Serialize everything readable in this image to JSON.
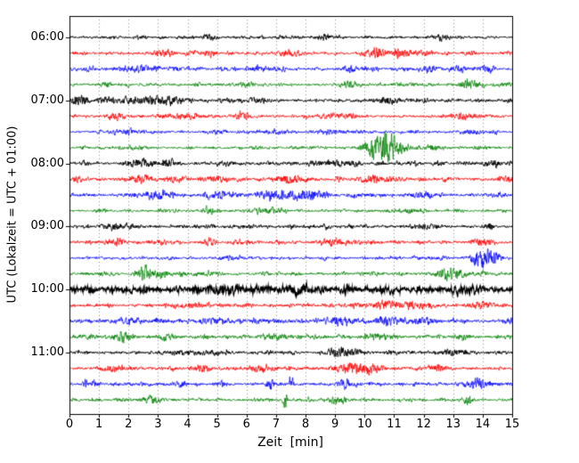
{
  "chart_data": {
    "type": "line",
    "subtype": "seismogram-drum-plot",
    "title": "",
    "xlabel": "Zeit  [min]",
    "ylabel": "UTC (Lokalzeit = UTC + 01:00)",
    "xlim": [
      0,
      15
    ],
    "x_ticks": [
      0,
      1,
      2,
      3,
      4,
      5,
      6,
      7,
      8,
      9,
      10,
      11,
      12,
      13,
      14,
      15
    ],
    "y_tick_labels": [
      "06:00",
      "07:00",
      "08:00",
      "09:00",
      "10:00",
      "11:00"
    ],
    "grid": "vertical-dotted",
    "legend": "none",
    "minutes_per_trace": 15,
    "n_traces": 24,
    "color_cycle": [
      "#000000",
      "#ff0000",
      "#0000ff",
      "#008000"
    ],
    "traces": [
      {
        "time": "06:00",
        "color": "#000000",
        "base_amp": 1.0,
        "lw": 0.9,
        "events": [
          {
            "x": 4.7,
            "amp": 2.5,
            "w": 0.15
          },
          {
            "x": 8.6,
            "amp": 2.0,
            "w": 0.2
          },
          {
            "x": 12.6,
            "amp": 1.5,
            "w": 0.3
          }
        ]
      },
      {
        "time": "06:15",
        "color": "#ff0000",
        "base_amp": 1.1,
        "lw": 0.75,
        "events": [
          {
            "x": 3.2,
            "amp": 2.0,
            "w": 0.3
          },
          {
            "x": 4.8,
            "amp": 3.0,
            "w": 0.12
          },
          {
            "x": 7.5,
            "amp": 2.0,
            "w": 0.3
          },
          {
            "x": 10.4,
            "amp": 3.0,
            "w": 0.25
          },
          {
            "x": 11.2,
            "amp": 2.5,
            "w": 0.2
          }
        ]
      },
      {
        "time": "06:30",
        "color": "#0000ff",
        "base_amp": 1.2,
        "lw": 0.75,
        "events": [
          {
            "x": 2.3,
            "amp": 2.5,
            "w": 0.3
          },
          {
            "x": 6.5,
            "amp": 1.5,
            "w": 0.3
          },
          {
            "x": 12.2,
            "amp": 2.0,
            "w": 0.25
          },
          {
            "x": 13.2,
            "amp": 2.0,
            "w": 0.2
          }
        ]
      },
      {
        "time": "06:45",
        "color": "#008000",
        "base_amp": 1.1,
        "lw": 0.75,
        "events": [
          {
            "x": 1.2,
            "amp": 2.0,
            "w": 0.15
          },
          {
            "x": 6.0,
            "amp": 1.5,
            "w": 0.3
          },
          {
            "x": 9.5,
            "amp": 1.5,
            "w": 0.3
          },
          {
            "x": 13.5,
            "amp": 2.0,
            "w": 0.2
          }
        ]
      },
      {
        "time": "07:00",
        "color": "#000000",
        "base_amp": 1.3,
        "lw": 0.9,
        "events": [
          {
            "x": 0.3,
            "amp": 3.0,
            "w": 0.2
          },
          {
            "x": 2.2,
            "amp": 2.5,
            "w": 0.4
          },
          {
            "x": 3.3,
            "amp": 3.0,
            "w": 0.4
          },
          {
            "x": 6.3,
            "amp": 2.0,
            "w": 0.3
          },
          {
            "x": 10.8,
            "amp": 2.5,
            "w": 0.3
          }
        ]
      },
      {
        "time": "07:15",
        "color": "#ff0000",
        "base_amp": 1.2,
        "lw": 0.75,
        "events": [
          {
            "x": 1.5,
            "amp": 2.5,
            "w": 0.2
          },
          {
            "x": 4.0,
            "amp": 2.0,
            "w": 0.4
          },
          {
            "x": 5.8,
            "amp": 2.5,
            "w": 0.2
          },
          {
            "x": 9.0,
            "amp": 1.5,
            "w": 0.4
          },
          {
            "x": 13.5,
            "amp": 2.0,
            "w": 0.3
          }
        ]
      },
      {
        "time": "07:30",
        "color": "#0000ff",
        "base_amp": 1.0,
        "lw": 0.75,
        "events": [
          {
            "x": 2.0,
            "amp": 1.5,
            "w": 0.4
          },
          {
            "x": 8.8,
            "amp": 1.5,
            "w": 0.3
          },
          {
            "x": 13.6,
            "amp": 2.5,
            "w": 0.25
          }
        ]
      },
      {
        "time": "07:45",
        "color": "#008000",
        "base_amp": 1.0,
        "lw": 0.75,
        "events": [
          {
            "x": 10.3,
            "amp": 7.0,
            "w": 0.25
          },
          {
            "x": 10.75,
            "amp": 10.0,
            "w": 0.2
          },
          {
            "x": 11.1,
            "amp": 5.0,
            "w": 0.3
          },
          {
            "x": 12.3,
            "amp": 2.0,
            "w": 0.2
          }
        ]
      },
      {
        "time": "08:00",
        "color": "#000000",
        "base_amp": 1.2,
        "lw": 0.9,
        "events": [
          {
            "x": 2.4,
            "amp": 2.5,
            "w": 0.3
          },
          {
            "x": 3.3,
            "amp": 2.5,
            "w": 0.2
          },
          {
            "x": 9.0,
            "amp": 2.0,
            "w": 0.5
          },
          {
            "x": 14.4,
            "amp": 2.5,
            "w": 0.15
          }
        ]
      },
      {
        "time": "08:15",
        "color": "#ff0000",
        "base_amp": 1.3,
        "lw": 0.75,
        "events": [
          {
            "x": 0.3,
            "amp": 2.5,
            "w": 0.15
          },
          {
            "x": 2.5,
            "amp": 2.0,
            "w": 0.3
          },
          {
            "x": 5.0,
            "amp": 2.0,
            "w": 0.3
          },
          {
            "x": 7.5,
            "amp": 2.0,
            "w": 0.4
          },
          {
            "x": 10.5,
            "amp": 2.0,
            "w": 0.4
          },
          {
            "x": 14.9,
            "amp": 2.5,
            "w": 0.2
          }
        ]
      },
      {
        "time": "08:30",
        "color": "#0000ff",
        "base_amp": 1.3,
        "lw": 0.75,
        "events": [
          {
            "x": 3.0,
            "amp": 2.5,
            "w": 0.4
          },
          {
            "x": 5.2,
            "amp": 2.0,
            "w": 0.25
          },
          {
            "x": 6.8,
            "amp": 3.5,
            "w": 0.3
          },
          {
            "x": 7.6,
            "amp": 3.0,
            "w": 0.3
          },
          {
            "x": 8.3,
            "amp": 2.5,
            "w": 0.3
          },
          {
            "x": 12.0,
            "amp": 2.0,
            "w": 0.3
          }
        ]
      },
      {
        "time": "08:45",
        "color": "#008000",
        "base_amp": 1.0,
        "lw": 0.75,
        "events": [
          {
            "x": 4.7,
            "amp": 3.5,
            "w": 0.12
          },
          {
            "x": 6.5,
            "amp": 1.5,
            "w": 0.4
          },
          {
            "x": 11.5,
            "amp": 1.5,
            "w": 0.3
          }
        ]
      },
      {
        "time": "09:00",
        "color": "#000000",
        "base_amp": 1.1,
        "lw": 0.9,
        "events": [
          {
            "x": 1.5,
            "amp": 2.5,
            "w": 0.2
          },
          {
            "x": 2.1,
            "amp": 2.0,
            "w": 0.2
          },
          {
            "x": 12.0,
            "amp": 1.5,
            "w": 0.4
          },
          {
            "x": 14.2,
            "amp": 3.0,
            "w": 0.12
          }
        ]
      },
      {
        "time": "09:15",
        "color": "#ff0000",
        "base_amp": 1.2,
        "lw": 0.75,
        "events": [
          {
            "x": 1.5,
            "amp": 2.0,
            "w": 0.3
          },
          {
            "x": 4.8,
            "amp": 3.5,
            "w": 0.15
          },
          {
            "x": 9.0,
            "amp": 1.5,
            "w": 0.5
          },
          {
            "x": 13.9,
            "amp": 2.5,
            "w": 0.2
          }
        ]
      },
      {
        "time": "09:30",
        "color": "#0000ff",
        "base_amp": 1.0,
        "lw": 0.75,
        "events": [
          {
            "x": 5.5,
            "amp": 1.5,
            "w": 0.3
          },
          {
            "x": 13.9,
            "amp": 7.5,
            "w": 0.22
          },
          {
            "x": 14.3,
            "amp": 4.0,
            "w": 0.2
          }
        ]
      },
      {
        "time": "09:45",
        "color": "#008000",
        "base_amp": 1.1,
        "lw": 0.75,
        "events": [
          {
            "x": 2.55,
            "amp": 7.0,
            "w": 0.15
          },
          {
            "x": 3.1,
            "amp": 3.0,
            "w": 0.2
          },
          {
            "x": 12.7,
            "amp": 4.0,
            "w": 0.25
          },
          {
            "x": 13.1,
            "amp": 2.5,
            "w": 0.2
          }
        ]
      },
      {
        "time": "10:00",
        "color": "#000000",
        "base_amp": 2.0,
        "lw": 1.1,
        "events": [
          {
            "x": 5.3,
            "amp": 2.0,
            "w": 0.4
          },
          {
            "x": 7.7,
            "amp": 3.0,
            "w": 0.3
          },
          {
            "x": 13.5,
            "amp": 2.5,
            "w": 0.3
          }
        ]
      },
      {
        "time": "10:15",
        "color": "#ff0000",
        "base_amp": 1.3,
        "lw": 0.75,
        "events": [
          {
            "x": 10.7,
            "amp": 3.5,
            "w": 0.3
          },
          {
            "x": 11.5,
            "amp": 2.5,
            "w": 0.25
          },
          {
            "x": 12.1,
            "amp": 2.0,
            "w": 0.2
          },
          {
            "x": 14.0,
            "amp": 2.0,
            "w": 0.3
          }
        ]
      },
      {
        "time": "10:30",
        "color": "#0000ff",
        "base_amp": 1.5,
        "lw": 0.75,
        "events": [
          {
            "x": 2.0,
            "amp": 2.0,
            "w": 0.3
          },
          {
            "x": 5.0,
            "amp": 2.0,
            "w": 0.3
          },
          {
            "x": 9.3,
            "amp": 2.5,
            "w": 0.3
          },
          {
            "x": 10.7,
            "amp": 3.0,
            "w": 0.25
          },
          {
            "x": 12.0,
            "amp": 2.5,
            "w": 0.3
          }
        ]
      },
      {
        "time": "10:45",
        "color": "#008000",
        "base_amp": 1.3,
        "lw": 0.75,
        "events": [
          {
            "x": 1.8,
            "amp": 2.5,
            "w": 0.25
          },
          {
            "x": 3.3,
            "amp": 2.5,
            "w": 0.2
          },
          {
            "x": 7.0,
            "amp": 2.0,
            "w": 0.3
          },
          {
            "x": 10.5,
            "amp": 2.0,
            "w": 0.4
          },
          {
            "x": 13.3,
            "amp": 2.0,
            "w": 0.2
          }
        ]
      },
      {
        "time": "11:00",
        "color": "#000000",
        "base_amp": 1.2,
        "lw": 0.9,
        "events": [
          {
            "x": 4.0,
            "amp": 1.5,
            "w": 0.4
          },
          {
            "x": 9.0,
            "amp": 4.0,
            "w": 0.2
          },
          {
            "x": 9.5,
            "amp": 2.5,
            "w": 0.3
          },
          {
            "x": 13.0,
            "amp": 2.0,
            "w": 0.25
          }
        ]
      },
      {
        "time": "11:15",
        "color": "#ff0000",
        "base_amp": 1.3,
        "lw": 0.75,
        "events": [
          {
            "x": 1.5,
            "amp": 2.5,
            "w": 0.2
          },
          {
            "x": 4.5,
            "amp": 3.0,
            "w": 0.2
          },
          {
            "x": 6.5,
            "amp": 2.5,
            "w": 0.3
          },
          {
            "x": 9.5,
            "amp": 3.0,
            "w": 0.4
          },
          {
            "x": 10.3,
            "amp": 2.5,
            "w": 0.3
          },
          {
            "x": 12.5,
            "amp": 3.0,
            "w": 0.2
          }
        ]
      },
      {
        "time": "11:30",
        "color": "#0000ff",
        "base_amp": 1.2,
        "lw": 0.75,
        "events": [
          {
            "x": 0.55,
            "amp": 5.0,
            "w": 0.06
          },
          {
            "x": 0.8,
            "amp": 4.0,
            "w": 0.06
          },
          {
            "x": 3.8,
            "amp": 3.0,
            "w": 0.1
          },
          {
            "x": 6.8,
            "amp": 3.0,
            "w": 0.12
          },
          {
            "x": 7.5,
            "amp": 6.0,
            "w": 0.06
          },
          {
            "x": 9.3,
            "amp": 3.0,
            "w": 0.15
          },
          {
            "x": 13.8,
            "amp": 2.5,
            "w": 0.2
          }
        ]
      },
      {
        "time": "11:45",
        "color": "#008000",
        "base_amp": 1.1,
        "lw": 0.75,
        "events": [
          {
            "x": 2.8,
            "amp": 2.0,
            "w": 0.3
          },
          {
            "x": 7.3,
            "amp": 8.0,
            "w": 0.05
          },
          {
            "x": 9.0,
            "amp": 2.0,
            "w": 0.3
          },
          {
            "x": 13.5,
            "amp": 4.0,
            "w": 0.1
          }
        ]
      }
    ]
  }
}
